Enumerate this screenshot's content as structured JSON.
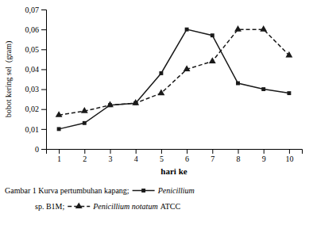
{
  "chart_data": {
    "type": "line",
    "x": [
      1,
      2,
      3,
      4,
      5,
      6,
      7,
      8,
      9,
      10
    ],
    "series": [
      {
        "values": [
          0.01,
          0.013,
          0.022,
          0.023,
          0.038,
          0.06,
          0.057,
          0.033,
          0.03,
          0.028
        ],
        "line_style": "solid",
        "marker": "square"
      },
      {
        "values": [
          0.017,
          0.019,
          0.022,
          0.023,
          0.028,
          0.04,
          0.044,
          0.06,
          0.06,
          0.047
        ],
        "line_style": "dashed",
        "marker": "triangle"
      }
    ],
    "color": "#1a1a1a",
    "x_label": "hari ke",
    "y_label": "bobot kering sel  (gram)",
    "xlim": [
      0.5,
      10.5
    ],
    "ylim": [
      0,
      0.07
    ],
    "xticks": [
      1,
      2,
      3,
      4,
      5,
      6,
      7,
      8,
      9,
      10
    ],
    "yticks": [
      0,
      {
        "value": 0.01,
        "label": "0,01"
      },
      {
        "value": 0.02,
        "label": "0,02"
      },
      {
        "value": 0.03,
        "label": "0,03"
      },
      {
        "value": 0.04,
        "label": "0,04"
      },
      {
        "value": 0.05,
        "label": "0,05"
      },
      {
        "value": 0.06,
        "label": "0,06"
      },
      {
        "value": 0.07,
        "label": "0,07"
      }
    ],
    "grid": false,
    "annotations": [
      "Gambar 1 Kurva pertumbuhan kapang;",
      "Penicillium",
      "sp. B1M;",
      "Penicillium notatum",
      "ATCC"
    ]
  }
}
